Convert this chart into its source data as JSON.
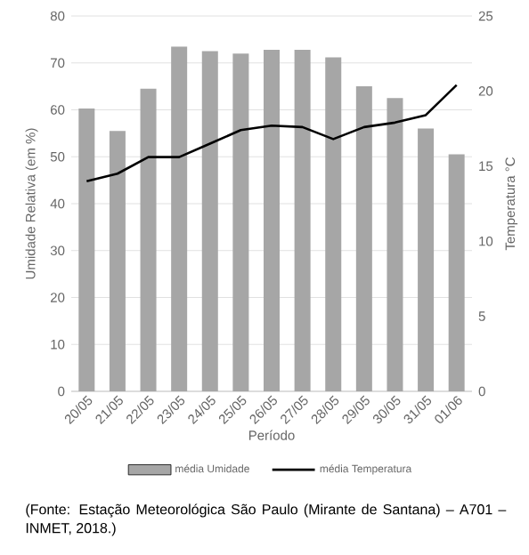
{
  "chart_data": {
    "type": "bar",
    "categories": [
      "20/05",
      "21/05",
      "22/05",
      "23/05",
      "24/05",
      "25/05",
      "26/05",
      "27/05",
      "28/05",
      "29/05",
      "30/05",
      "31/05",
      "01/06"
    ],
    "xlabel": "Período",
    "ylabel": "Umidade Relativa (em %)",
    "y2label": "Temperatura °C",
    "ylim": [
      0,
      80
    ],
    "yticks": [
      0,
      10,
      20,
      30,
      40,
      50,
      60,
      70,
      80
    ],
    "y2lim": [
      0,
      25
    ],
    "y2ticks": [
      0,
      5,
      10,
      15,
      20,
      25
    ],
    "grid": "y",
    "legend": "bottom",
    "series": [
      {
        "name": "média Umidade",
        "color": "#a6a6a6",
        "values": [
          60.3,
          55.5,
          64.5,
          73.5,
          72.5,
          72,
          72.8,
          72.8,
          71.2,
          65,
          62.5,
          56,
          50.5
        ]
      },
      {
        "name": "média Temperatura",
        "type": "line",
        "axis": "y2",
        "color": "#000000",
        "values": [
          14,
          14.5,
          15.6,
          15.6,
          16.5,
          17.4,
          17.7,
          17.6,
          16.8,
          17.6,
          17.9,
          18.4,
          20.4
        ]
      }
    ],
    "annotations": [
      "(Fonte: Estação Meteorológica São Paulo (Mirante de Santana) – A701 – INMET, 2018.)"
    ]
  }
}
